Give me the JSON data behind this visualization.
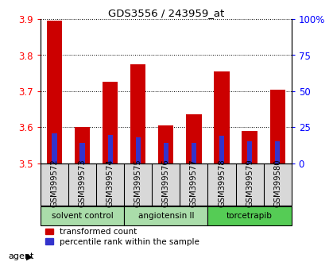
{
  "title": "GDS3556 / 243959_at",
  "samples": [
    "GSM399572",
    "GSM399573",
    "GSM399574",
    "GSM399575",
    "GSM399576",
    "GSM399577",
    "GSM399578",
    "GSM399579",
    "GSM399580"
  ],
  "red_tops": [
    3.895,
    3.6,
    3.725,
    3.775,
    3.605,
    3.635,
    3.755,
    3.59,
    3.705
  ],
  "blue_tops": [
    3.582,
    3.557,
    3.578,
    3.572,
    3.556,
    3.556,
    3.577,
    3.562,
    3.56
  ],
  "bar_bottom": 3.5,
  "ylim": [
    3.5,
    3.9
  ],
  "yticks_left": [
    3.5,
    3.6,
    3.7,
    3.8,
    3.9
  ],
  "yticks_right": [
    0,
    25,
    50,
    75,
    100
  ],
  "groups_info": [
    {
      "label": "solvent control",
      "xmin": -0.5,
      "xmax": 2.5,
      "color": "#aaddaa"
    },
    {
      "label": "angiotensin II",
      "xmin": 2.5,
      "xmax": 5.5,
      "color": "#aaddaa"
    },
    {
      "label": "torcetrapib",
      "xmin": 5.5,
      "xmax": 8.5,
      "color": "#55cc55"
    }
  ],
  "agent_label": "agent",
  "red_color": "#cc0000",
  "blue_color": "#3333cc",
  "bar_width": 0.55,
  "blue_bar_width": 0.18,
  "legend_red": "transformed count",
  "legend_blue": "percentile rank within the sample"
}
